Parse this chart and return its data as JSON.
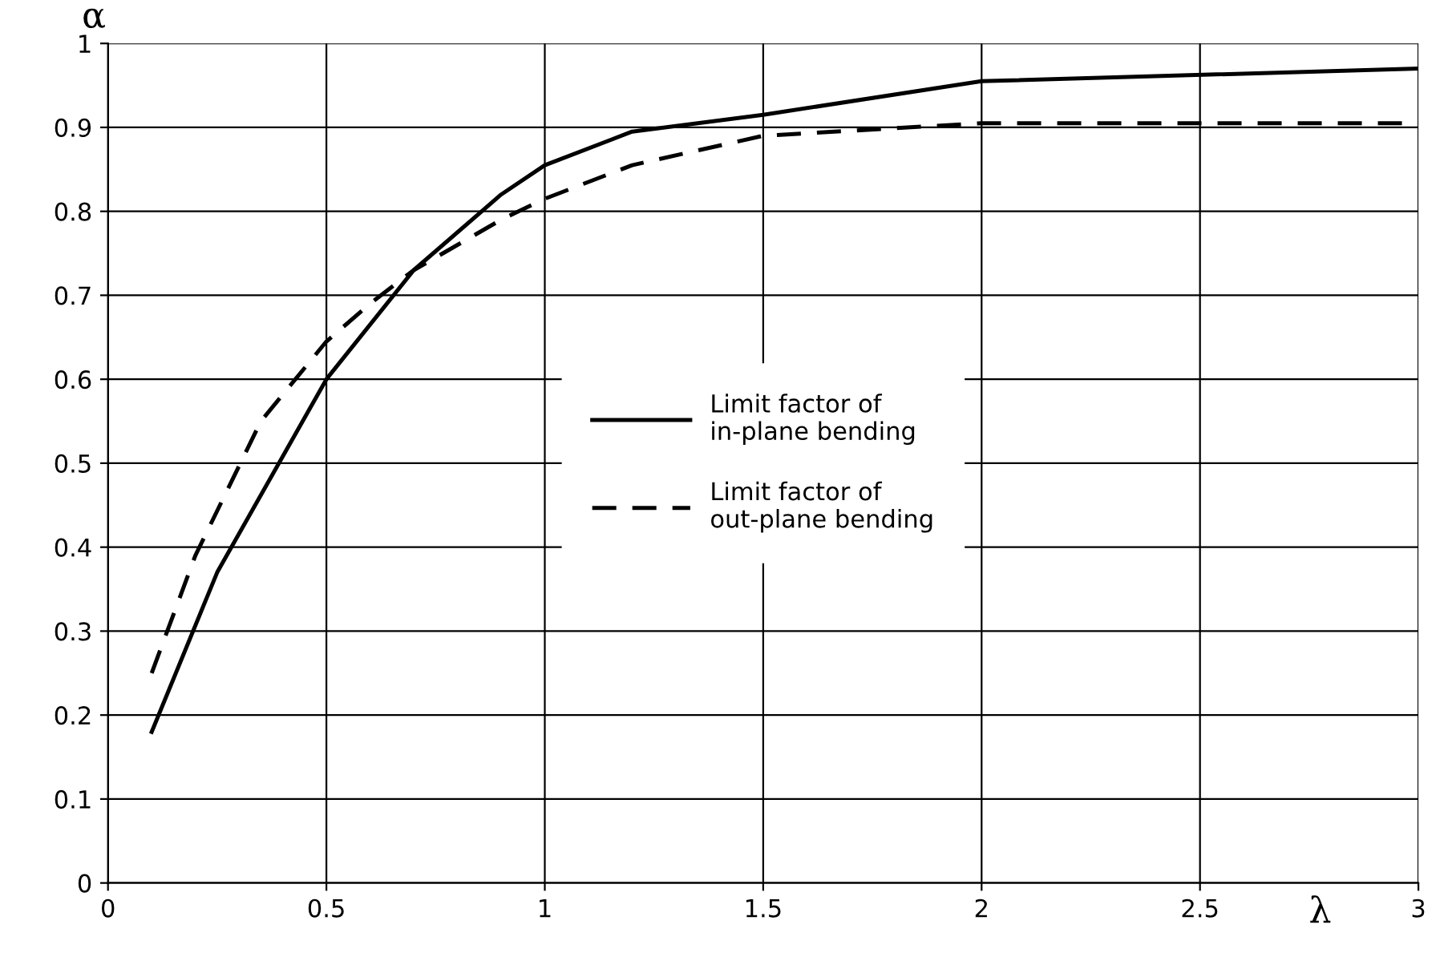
{
  "chart_data": {
    "type": "line",
    "xlabel": "λ",
    "ylabel": "α",
    "xlim": [
      0,
      3
    ],
    "ylim": [
      0,
      1
    ],
    "xticks": [
      0,
      0.5,
      1,
      1.5,
      2,
      2.5,
      3
    ],
    "yticks": [
      0,
      0.1,
      0.2,
      0.3,
      0.4,
      0.5,
      0.6,
      0.7,
      0.8,
      0.9,
      1
    ],
    "grid": true,
    "legend": "center",
    "marker": "none",
    "series": [
      {
        "name": "Limit factor of\nin-plane bending",
        "color": "#000000",
        "line_style": "solid",
        "x": [
          0.1,
          0.25,
          0.5,
          0.7,
          0.9,
          1.0,
          1.2,
          1.5,
          2.0,
          3.0
        ],
        "values": [
          0.18,
          0.37,
          0.6,
          0.73,
          0.82,
          0.855,
          0.895,
          0.915,
          0.955,
          0.97
        ]
      },
      {
        "name": "Limit factor of\nout-plane bending",
        "color": "#000000",
        "line_style": "dashed",
        "x": [
          0.1,
          0.2,
          0.35,
          0.5,
          0.6,
          0.7,
          0.9,
          1.0,
          1.2,
          1.5,
          2.0,
          3.0
        ],
        "values": [
          0.25,
          0.39,
          0.55,
          0.645,
          0.69,
          0.73,
          0.79,
          0.815,
          0.855,
          0.89,
          0.905,
          0.905
        ]
      }
    ]
  }
}
